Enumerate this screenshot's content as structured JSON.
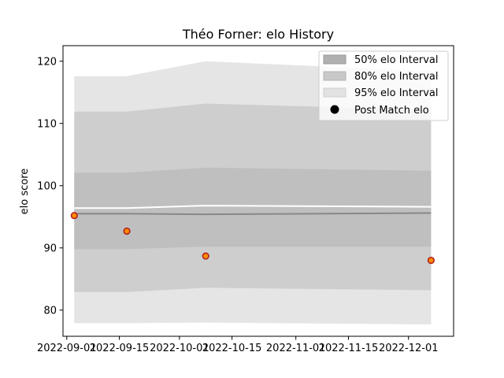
{
  "chart_data": {
    "type": "area",
    "title": "Théo Forner: elo History",
    "xlabel": "",
    "ylabel": "elo score",
    "x": [
      "2022-09-03",
      "2022-09-17",
      "2022-10-08",
      "2022-12-07"
    ],
    "xticks": [
      "2022-09-01",
      "2022-09-15",
      "2022-10-01",
      "2022-10-15",
      "2022-11-01",
      "2022-11-15",
      "2022-12-01"
    ],
    "xlim": [
      "2022-08-31",
      "2022-12-13"
    ],
    "ylim": [
      75.8,
      122.5
    ],
    "yticks": [
      80,
      90,
      100,
      110,
      120
    ],
    "grid": false,
    "legend_position": "top-right",
    "bands": [
      {
        "name": "95% elo Interval",
        "color": "#e5e5e5",
        "lower": [
          77.9,
          77.9,
          78.0,
          77.7
        ],
        "upper": [
          117.6,
          117.6,
          120.0,
          118.4
        ]
      },
      {
        "name": "80% elo Interval",
        "color": "#cecece",
        "lower": [
          82.9,
          82.9,
          83.6,
          83.2
        ],
        "upper": [
          111.9,
          111.9,
          113.2,
          112.2
        ]
      },
      {
        "name": "50% elo Interval",
        "color": "#bfbfbf",
        "lower": [
          89.8,
          89.8,
          90.2,
          90.2
        ],
        "upper": [
          102.1,
          102.1,
          102.9,
          102.4
        ]
      }
    ],
    "series": [
      {
        "values": [
          95.5,
          95.5,
          95.4,
          95.6
        ],
        "color": "#888888"
      },
      {
        "values": [
          96.4,
          96.4,
          96.8,
          96.6
        ],
        "color": "#ffffff"
      },
      {
        "name": "Post Match elo",
        "values": [
          95.2,
          92.7,
          88.7,
          88.0
        ],
        "color": "#ff8c00",
        "edge": "#b22222"
      }
    ]
  }
}
